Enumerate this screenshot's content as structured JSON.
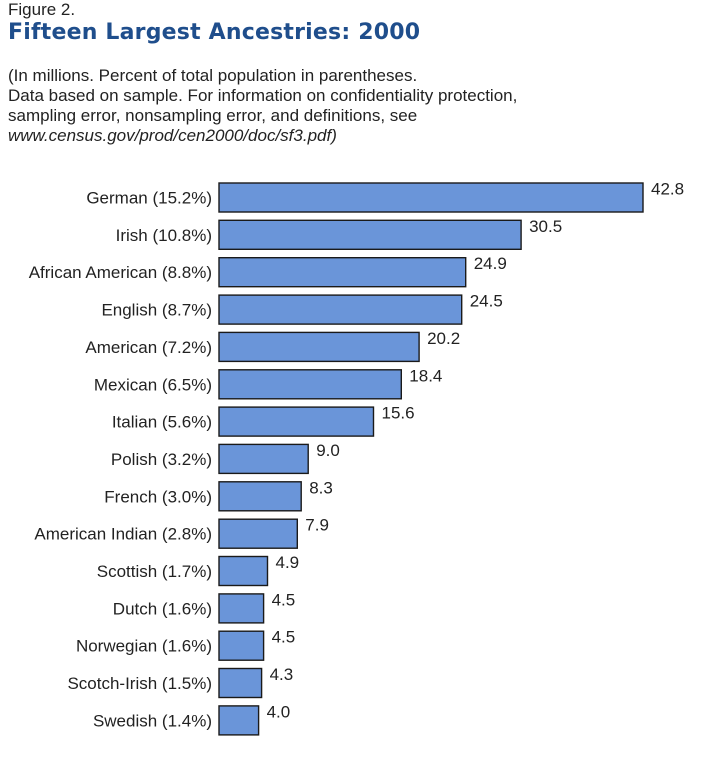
{
  "figure_label": "Figure 2.",
  "title": "Fifteen Largest Ancestries: 2000",
  "note": {
    "line1": "(In millions. Percent of total population in parentheses.",
    "line2": "Data based on sample.  For information on confidentiality protection,",
    "line3": "sampling error, nonsampling error, and definitions, see",
    "line4": "www.census.gov/prod/cen2000/doc/sf3.pdf)"
  },
  "colors": {
    "bar": "#6a95d9",
    "bar_stroke": "#1a1a1a",
    "title": "#1f4e8c"
  },
  "chart_data": {
    "type": "bar",
    "orientation": "horizontal",
    "categories": [
      "German (15.2%)",
      "Irish (10.8%)",
      "African American (8.8%)",
      "English (8.7%)",
      "American (7.2%)",
      "Mexican (6.5%)",
      "Italian (5.6%)",
      "Polish (3.2%)",
      "French (3.0%)",
      "American Indian (2.8%)",
      "Scottish (1.7%)",
      "Dutch (1.6%)",
      "Norwegian (1.6%)",
      "Scotch-Irish (1.5%)",
      "Swedish (1.4%)"
    ],
    "values": [
      42.8,
      30.5,
      24.9,
      24.5,
      20.2,
      18.4,
      15.6,
      9.0,
      8.3,
      7.9,
      4.9,
      4.5,
      4.5,
      4.3,
      4.0
    ],
    "value_labels": [
      "42.8",
      "30.5",
      "24.9",
      "24.5",
      "20.2",
      "18.4",
      "15.6",
      "9.0",
      "8.3",
      "7.9",
      "4.9",
      "4.5",
      "4.5",
      "4.3",
      "4.0"
    ],
    "xlim": [
      0,
      42.8
    ],
    "grid": false,
    "legend": "none"
  }
}
